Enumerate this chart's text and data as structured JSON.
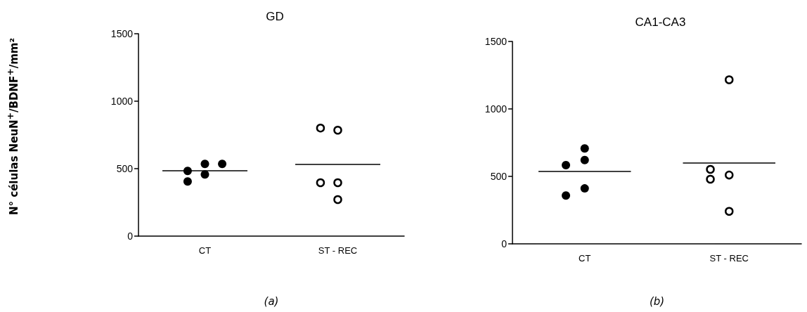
{
  "chart_data": [
    {
      "type": "scatter",
      "title": "GD",
      "ylabel": "N° células NeuN$^{+}$/BDNF$^{+}$/mm²",
      "categories": [
        "CT",
        "ST - REC"
      ],
      "ylim": [
        0,
        1500
      ],
      "yticks": [
        0,
        500,
        1000,
        1500
      ],
      "grid": false,
      "marker": "circle",
      "annotations": [
        "(a)"
      ],
      "series": [
        {
          "color": "#000000",
          "x": [
            "CT",
            "CT",
            "CT",
            "CT",
            "CT"
          ],
          "values": [
            535,
            483,
            535,
            457,
            405
          ]
        },
        {
          "color": "#000000",
          "x": [
            "ST - REC",
            "ST - REC",
            "ST - REC",
            "ST - REC",
            "ST - REC"
          ],
          "values": [
            785,
            801,
            396,
            396,
            271
          ]
        }
      ],
      "ref_lines": [
        {
          "axis": "y",
          "value": 486,
          "color": "#000000"
        },
        {
          "axis": "y",
          "value": 530,
          "color": "#000000"
        }
      ]
    },
    {
      "type": "scatter",
      "title": "CA1-CA3",
      "categories": [
        "CT",
        "ST - REC"
      ],
      "ylim": [
        0,
        1500
      ],
      "yticks": [
        0,
        500,
        1000,
        1500
      ],
      "grid": false,
      "marker": "circle",
      "annotations": [
        "(b)"
      ],
      "series": [
        {
          "color": "#000000",
          "x": [
            "CT",
            "CT",
            "CT",
            "CT",
            "CT"
          ],
          "values": [
            707,
            621,
            583,
            411,
            358
          ]
        },
        {
          "color": "#000000",
          "x": [
            "ST - REC",
            "ST - REC",
            "ST - REC",
            "ST - REC",
            "ST - REC"
          ],
          "values": [
            1216,
            510,
            552,
            479,
            241
          ]
        }
      ],
      "ref_lines": [
        {
          "axis": "y",
          "value": 538,
          "color": "#000000"
        },
        {
          "axis": "y",
          "value": 598,
          "color": "#000000"
        }
      ]
    }
  ]
}
